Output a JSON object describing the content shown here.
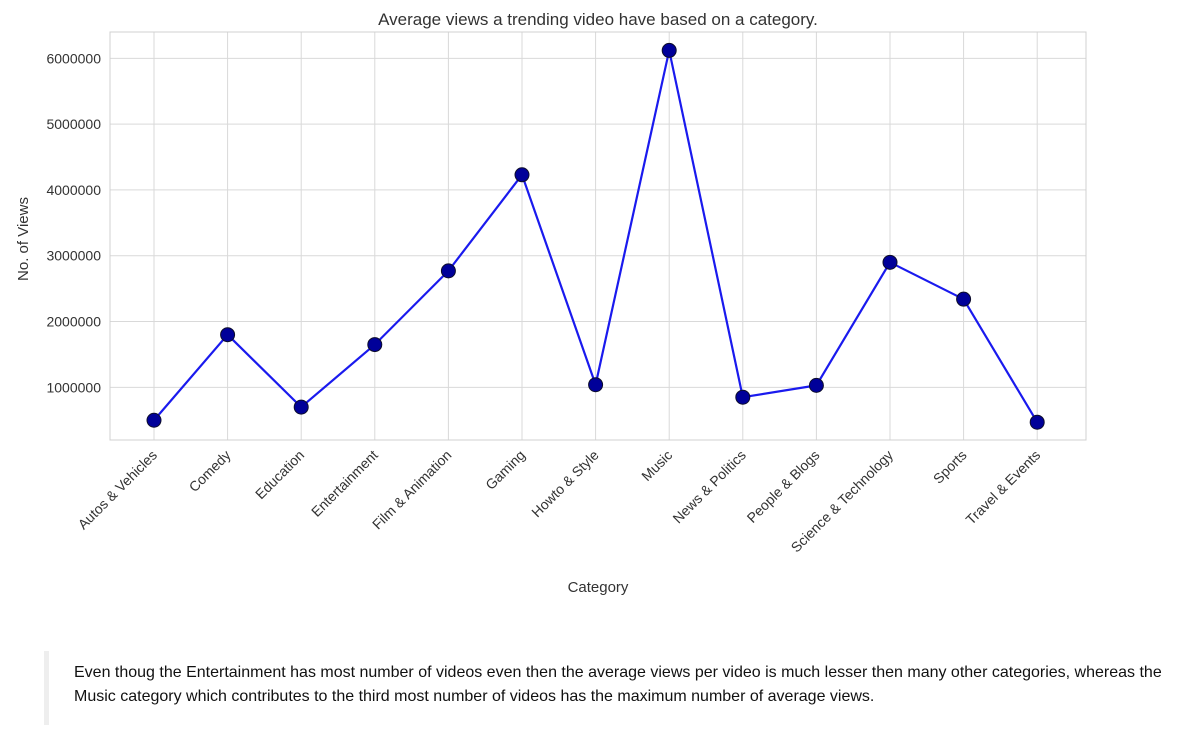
{
  "chart_data": {
    "type": "line",
    "title": "Average views a trending video have based on a category.",
    "xlabel": "Category",
    "ylabel": "No. of Views",
    "categories": [
      "Autos & Vehicles",
      "Comedy",
      "Education",
      "Entertainment",
      "Film & Animation",
      "Gaming",
      "Howto & Style",
      "Music",
      "News & Politics",
      "People & Blogs",
      "Science & Technology",
      "Sports",
      "Travel & Events"
    ],
    "series": [
      {
        "values": [
          500000,
          1800000,
          700000,
          1650000,
          2770000,
          4230000,
          1040000,
          6120000,
          850000,
          1030000,
          2900000,
          2340000,
          470000
        ],
        "color": "#1a1aee",
        "marker_color": "#000099"
      }
    ],
    "yticks": [
      1000000,
      2000000,
      3000000,
      4000000,
      5000000,
      6000000
    ],
    "ylim": [
      200000,
      6400000
    ],
    "grid": true,
    "legend": false
  },
  "note": {
    "text": "Even thoug the Entertainment has most number of videos even then the average views per video is much lesser then many other categories, whereas the Music category which contributes to the third most number of videos has the maximum number of average views."
  }
}
